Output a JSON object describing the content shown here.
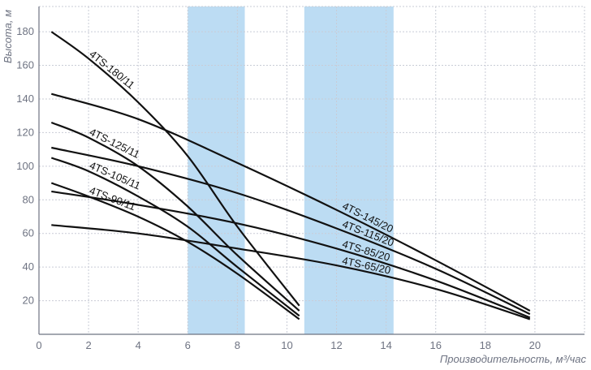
{
  "chart_data": {
    "type": "line",
    "xlabel": "Производительность, м³/час",
    "ylabel": "Высота, м",
    "xlim": [
      0,
      22
    ],
    "ylim": [
      0,
      195
    ],
    "x_ticks": [
      0,
      2,
      4,
      6,
      8,
      10,
      12,
      14,
      16,
      18,
      20
    ],
    "y_ticks": [
      20,
      40,
      60,
      80,
      100,
      120,
      140,
      160,
      180
    ],
    "grid": true,
    "bands": [
      {
        "x_from": 6.0,
        "x_to": 8.3,
        "color": "#bcdcf3"
      },
      {
        "x_from": 10.7,
        "x_to": 14.3,
        "color": "#bcdcf3"
      }
    ],
    "series": [
      {
        "name": "4TS-180/11",
        "x": [
          0.5,
          2,
          4,
          6,
          8,
          10.5
        ],
        "y": [
          180,
          164,
          138,
          106,
          64,
          17
        ]
      },
      {
        "name": "4TS-125/11",
        "x": [
          0.5,
          2,
          4,
          6,
          8,
          10.5
        ],
        "y": [
          126,
          117,
          100,
          76,
          47,
          14
        ]
      },
      {
        "name": "4TS-105/11",
        "x": [
          0.5,
          2,
          4,
          6,
          8,
          10.5
        ],
        "y": [
          105,
          97,
          82,
          64,
          40,
          11
        ]
      },
      {
        "name": "4TS-90/11",
        "x": [
          0.5,
          2,
          4,
          6,
          8,
          10.5
        ],
        "y": [
          90,
          82,
          70,
          55,
          36,
          9
        ]
      },
      {
        "name": "4TS-145/20",
        "x": [
          0.5,
          4,
          8,
          12,
          16,
          19.8
        ],
        "y": [
          143,
          128,
          102,
          74,
          44,
          14
        ]
      },
      {
        "name": "4TS-115/20",
        "x": [
          0.5,
          4,
          8,
          12,
          16,
          19.8
        ],
        "y": [
          111,
          100,
          84,
          63,
          39,
          12
        ]
      },
      {
        "name": "4TS-85/20",
        "x": [
          0.5,
          4,
          8,
          12,
          16,
          19.8
        ],
        "y": [
          85,
          77,
          66,
          51,
          32,
          10
        ]
      },
      {
        "name": "4TS-65/20",
        "x": [
          0.5,
          4,
          8,
          12,
          16,
          19.8
        ],
        "y": [
          65,
          60,
          51,
          41,
          27,
          9
        ]
      }
    ],
    "labels": [
      {
        "text": "4TS-180/11",
        "series": "4TS-180/11",
        "x": 2.0,
        "y": 164
      },
      {
        "text": "4TS-125/11",
        "series": "4TS-125/11",
        "x": 2.0,
        "y": 117
      },
      {
        "text": "4TS-105/11",
        "series": "4TS-105/11",
        "x": 2.0,
        "y": 97
      },
      {
        "text": "4TS-90/11",
        "series": "4TS-90/11",
        "x": 2.0,
        "y": 82
      },
      {
        "text": "4TS-145/20",
        "series": "4TS-145/20",
        "x": 12.2,
        "y": 73
      },
      {
        "text": "4TS-115/20",
        "series": "4TS-115/20",
        "x": 12.2,
        "y": 62
      },
      {
        "text": "4TS-85/20",
        "series": "4TS-85/20",
        "x": 12.2,
        "y": 50
      },
      {
        "text": "4TS-65/20",
        "series": "4TS-65/20",
        "x": 12.2,
        "y": 40
      }
    ]
  }
}
